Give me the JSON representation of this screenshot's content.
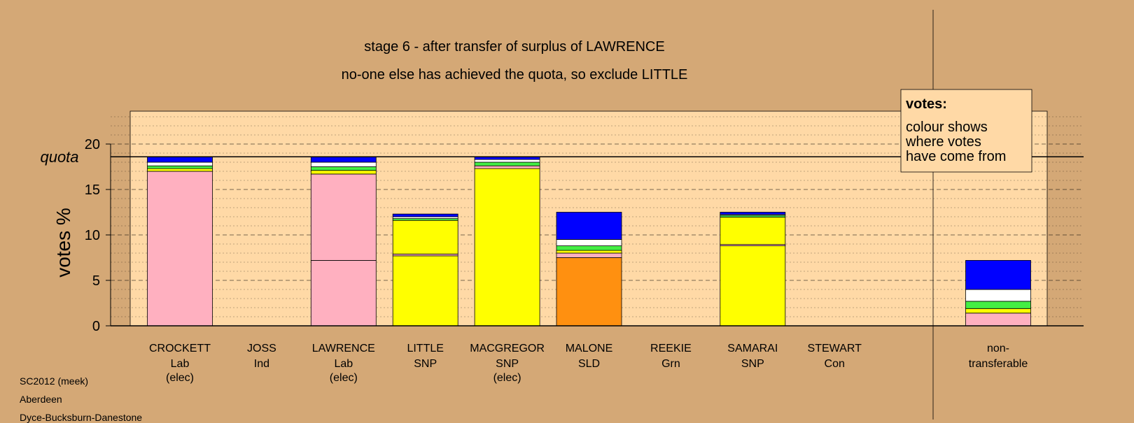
{
  "chart_data": {
    "type": "bar",
    "stacked": true,
    "title": "stage 6 - after transfer of surplus of LAWRENCE",
    "subtitle": "no-one else has achieved the quota, so exclude LITTLE",
    "ylabel": "votes %",
    "ylim": [
      0,
      23.6
    ],
    "yticks": [
      0,
      5,
      10,
      15,
      20
    ],
    "quota": 18.6,
    "quota_label": "quota",
    "grid": true,
    "legend": {
      "title": "votes:",
      "lines": [
        "colour shows",
        "where votes",
        "have come from"
      ],
      "placement": "top-right"
    },
    "colors": {
      "Lab": "#FFB0C0",
      "SNP": "#FFFF00",
      "SLD": "#FF9010",
      "Con": "#0000FF",
      "Ind": "#FFFFFF",
      "Grn": "#44EE44",
      "background": "#D4A876",
      "plot": "#FFD9A6"
    },
    "candidates": [
      {
        "name": "CROCKETT",
        "party": "Lab",
        "status": "(elec)",
        "segments": [
          {
            "c": "#FFB0C0",
            "v": 17.0
          },
          {
            "c": "#FFFF00",
            "v": 0.3
          },
          {
            "c": "#44EE44",
            "v": 0.3
          },
          {
            "c": "#FFFFFF",
            "v": 0.4
          },
          {
            "c": "#0000FF",
            "v": 0.6
          }
        ]
      },
      {
        "name": "JOSS",
        "party": "Ind",
        "status": "",
        "segments": []
      },
      {
        "name": "LAWRENCE",
        "party": "Lab",
        "status": "(elec)",
        "segments": [
          {
            "c": "#FFB0C0",
            "v": 7.2
          },
          {
            "c": "#FFB0C0",
            "v": 9.5
          },
          {
            "c": "#FFFF00",
            "v": 0.4
          },
          {
            "c": "#44EE44",
            "v": 0.4
          },
          {
            "c": "#FFFFFF",
            "v": 0.5
          },
          {
            "c": "#0000FF",
            "v": 0.6
          }
        ]
      },
      {
        "name": "LITTLE",
        "party": "SNP",
        "status": "",
        "segments": [
          {
            "c": "#FFFF00",
            "v": 7.7
          },
          {
            "c": "#FFB0C0",
            "v": 0.2
          },
          {
            "c": "#FFFF00",
            "v": 3.7
          },
          {
            "c": "#44EE44",
            "v": 0.2
          },
          {
            "c": "#FFFFFF",
            "v": 0.2
          },
          {
            "c": "#0000FF",
            "v": 0.3
          }
        ]
      },
      {
        "name": "MACGREGOR",
        "party": "SNP",
        "status": "(elec)",
        "segments": [
          {
            "c": "#FFFF00",
            "v": 17.3
          },
          {
            "c": "#FFB0C0",
            "v": 0.3
          },
          {
            "c": "#44EE44",
            "v": 0.4
          },
          {
            "c": "#FFFFFF",
            "v": 0.3
          },
          {
            "c": "#0000FF",
            "v": 0.3
          }
        ]
      },
      {
        "name": "MALONE",
        "party": "SLD",
        "status": "",
        "segments": [
          {
            "c": "#FF9010",
            "v": 7.5
          },
          {
            "c": "#FFB0C0",
            "v": 0.5
          },
          {
            "c": "#FFFF00",
            "v": 0.3
          },
          {
            "c": "#44EE44",
            "v": 0.5
          },
          {
            "c": "#FFFFFF",
            "v": 0.7
          },
          {
            "c": "#0000FF",
            "v": 3.0
          }
        ]
      },
      {
        "name": "REEKIE",
        "party": "Grn",
        "status": "",
        "segments": []
      },
      {
        "name": "SAMARAI",
        "party": "SNP",
        "status": "",
        "segments": [
          {
            "c": "#FFFF00",
            "v": 8.8
          },
          {
            "c": "#FFB0C0",
            "v": 0.15
          },
          {
            "c": "#FFFF00",
            "v": 3.0
          },
          {
            "c": "#44EE44",
            "v": 0.2
          },
          {
            "c": "#FFFFFF",
            "v": 0.1
          },
          {
            "c": "#0000FF",
            "v": 0.25
          }
        ]
      },
      {
        "name": "STEWART",
        "party": "Con",
        "status": "",
        "segments": []
      }
    ],
    "nontransferable": {
      "label1": "non-",
      "label2": "transferable",
      "segments": [
        {
          "c": "#FFB0C0",
          "v": 1.4
        },
        {
          "c": "#FFFF00",
          "v": 0.5
        },
        {
          "c": "#44EE44",
          "v": 0.8
        },
        {
          "c": "#FFFFFF",
          "v": 1.3
        },
        {
          "c": "#0000FF",
          "v": 3.2
        }
      ]
    }
  },
  "footer": {
    "line1": "SC2012 (meek)",
    "line2": "Aberdeen",
    "line3": "Dyce-Bucksburn-Danestone"
  }
}
